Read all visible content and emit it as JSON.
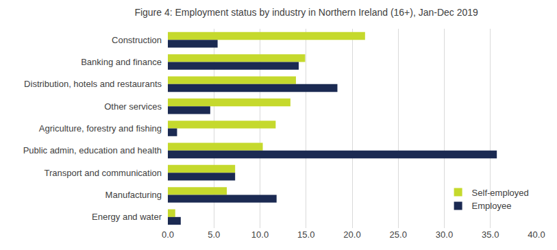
{
  "chart_data": {
    "type": "bar",
    "orientation": "horizontal",
    "title": "Figure 4: Employment status by industry in Northern Ireland (16+), Jan-Dec 2019",
    "categories": [
      "Construction",
      "Banking and finance",
      "Distribution, hotels and restaurants",
      "Other services",
      "Agriculture, forestry and fishing",
      "Public admin, education and health",
      "Transport and communication",
      "Manufacturing",
      "Energy and water"
    ],
    "series": [
      {
        "name": "Self-employed",
        "color": "#c5d92d",
        "values": [
          21.4,
          14.9,
          13.9,
          13.3,
          11.7,
          10.3,
          7.3,
          6.4,
          0.8
        ]
      },
      {
        "name": "Employee",
        "color": "#1b2a52",
        "values": [
          5.4,
          14.2,
          18.4,
          4.6,
          1.0,
          35.7,
          7.3,
          11.8,
          1.4
        ]
      }
    ],
    "xlim": [
      0,
      40
    ],
    "xticks": [
      {
        "value": 0,
        "label": "0.0"
      },
      {
        "value": 5,
        "label": "5.0"
      },
      {
        "value": 10,
        "label": "10.0"
      },
      {
        "value": 15,
        "label": "15.0"
      },
      {
        "value": 20,
        "label": "20.0"
      },
      {
        "value": 25,
        "label": "25.0"
      },
      {
        "value": 30,
        "label": "30.0"
      },
      {
        "value": 35,
        "label": "35.0"
      },
      {
        "value": 40,
        "label": "40.0"
      }
    ],
    "grid": true,
    "legend": "lower right"
  }
}
